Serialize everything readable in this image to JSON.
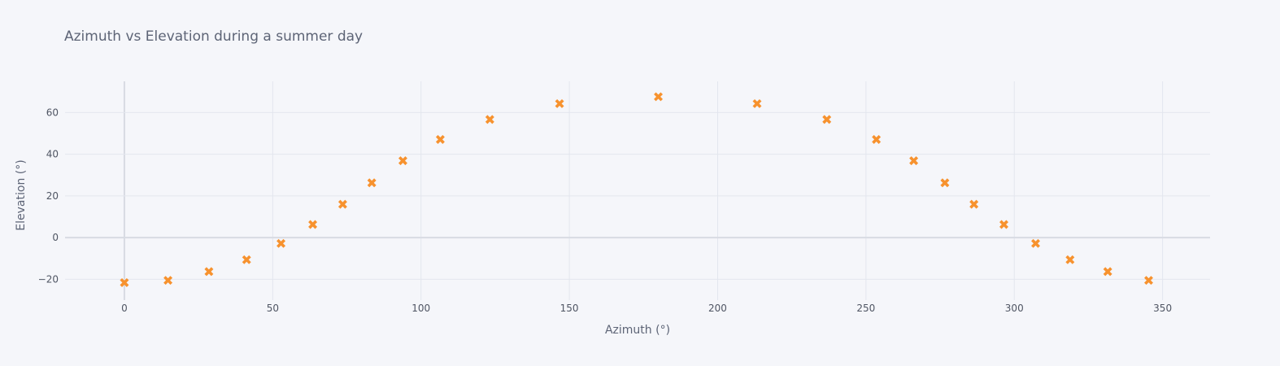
{
  "chart_data": {
    "type": "scatter",
    "title": "Azimuth vs Elevation during a summer day",
    "xlabel": "Azimuth (°)",
    "ylabel": "Elevation (°)",
    "xlim": [
      -20,
      366
    ],
    "ylim": [
      -30,
      75
    ],
    "x_ticks": [
      0,
      50,
      100,
      150,
      200,
      250,
      300,
      350
    ],
    "y_ticks": [
      -20,
      0,
      20,
      40,
      60
    ],
    "y_tick_labels": [
      "−20",
      "0",
      "20",
      "40",
      "60"
    ],
    "grid": true,
    "marker": "x",
    "colors": {
      "marker": "#f7922e",
      "grid": "#e3e6ee",
      "zeroline": "#d8dbe3",
      "background": "#f5f6fa"
    },
    "series": [
      {
        "x": [
          0,
          14.7,
          28.5,
          41.2,
          52.8,
          63.5,
          73.6,
          83.4,
          93.9,
          106.5,
          123.2,
          146.7,
          180,
          213.3,
          236.8,
          253.5,
          266.1,
          276.6,
          286.4,
          296.5,
          307.2,
          318.8,
          331.5,
          345.3
        ],
        "y": [
          -21.6,
          -20.5,
          -16.3,
          -10.6,
          -2.8,
          6.3,
          16.0,
          26.3,
          36.9,
          47.1,
          56.7,
          64.3,
          67.6,
          64.3,
          56.7,
          47.1,
          36.9,
          26.3,
          16.0,
          6.3,
          -2.8,
          -10.6,
          -16.3,
          -20.5
        ]
      }
    ]
  }
}
